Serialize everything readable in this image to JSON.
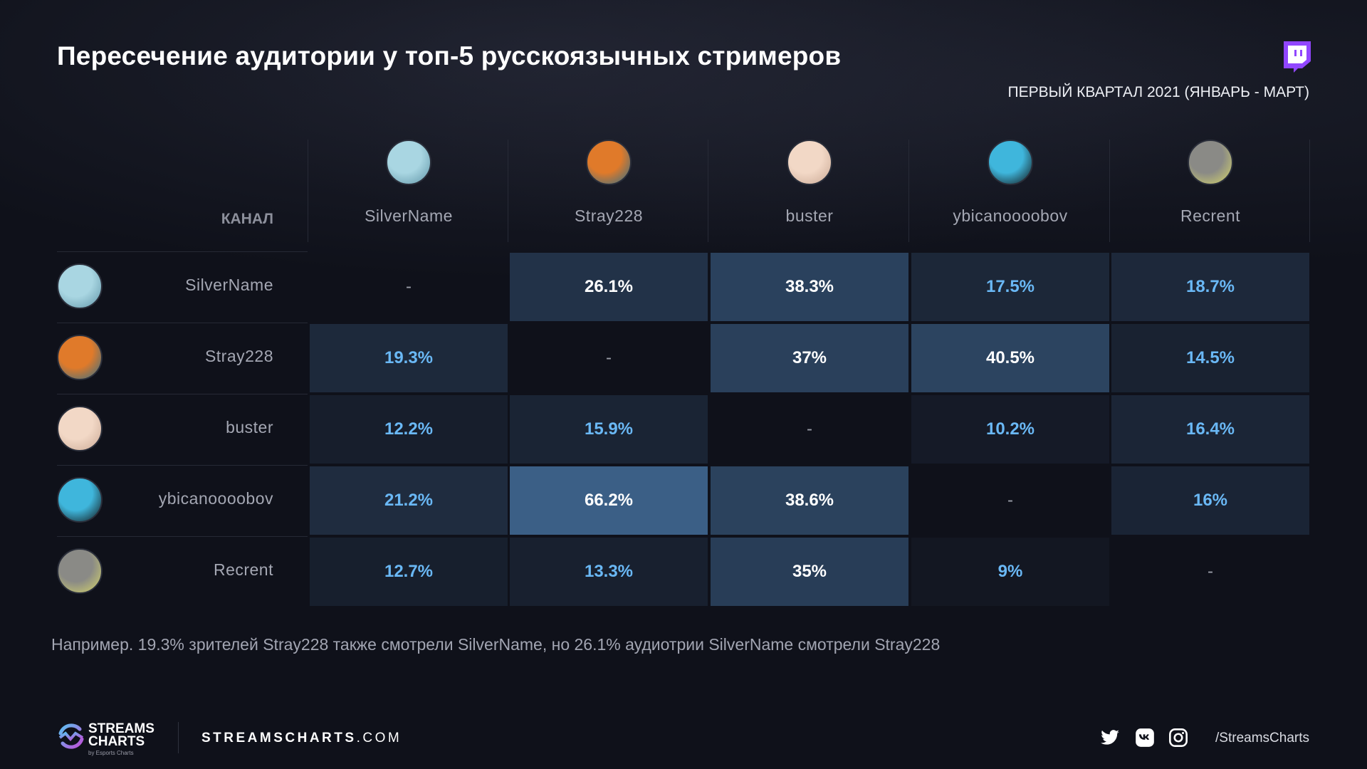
{
  "header": {
    "title": "Пересечение аудитории у топ-5 русскоязычных стримеров",
    "subtitle": "ПЕРВЫЙ КВАРТАЛ 2021 (ЯНВАРЬ - МАРТ)",
    "platform_icon": "twitch-icon",
    "platform_color": "#9146ff"
  },
  "chart_data": {
    "type": "heatmap",
    "row_header": "КАНАЛ",
    "columns": [
      "SilverName",
      "Stray228",
      "buster",
      "ybicanoooobov",
      "Recrent"
    ],
    "rows": [
      "SilverName",
      "Stray228",
      "buster",
      "ybicanoooobov",
      "Recrent"
    ],
    "values": [
      [
        "-",
        "26.1%",
        "38.3%",
        "17.5%",
        "18.7%"
      ],
      [
        "19.3%",
        "-",
        "37%",
        "40.5%",
        "14.5%"
      ],
      [
        "12.2%",
        "15.9%",
        "-",
        "10.2%",
        "16.4%"
      ],
      [
        "21.2%",
        "66.2%",
        "38.6%",
        "-",
        "16%"
      ],
      [
        "12.7%",
        "13.3%",
        "35%",
        "9%",
        "-"
      ]
    ],
    "colors": {
      "low": "#131722",
      "high": "#3b5f86",
      "text_high": "#ffffff",
      "text_low": "#6ab8f5",
      "dash": "#9a9da8"
    }
  },
  "avatar_colors": {
    "SilverName": [
      "#a9d6e2",
      "#5f94a6"
    ],
    "Stray228": [
      "#e07a2a",
      "#2c6f8a"
    ],
    "buster": [
      "#f2d8c6",
      "#c9a894"
    ],
    "ybicanoooobov": [
      "#3fb6dc",
      "#111111"
    ],
    "Recrent": [
      "#8a8a86",
      "#d8d86a"
    ]
  },
  "footnote": "Например. 19.3% зрителей Stray228 также смотрели SilverName, но 26.1% аудиотрии SilverName смотрели Stray228",
  "footer": {
    "logo_line1": "STREAMS",
    "logo_line2": "CHARTS",
    "logo_by": "by Esports Charts",
    "site_bold": "STREAMSCHARTS",
    "site_rest": ".COM",
    "social_icons": [
      "twitter-icon",
      "vk-icon",
      "instagram-icon"
    ],
    "handle": "/StreamsCharts"
  }
}
